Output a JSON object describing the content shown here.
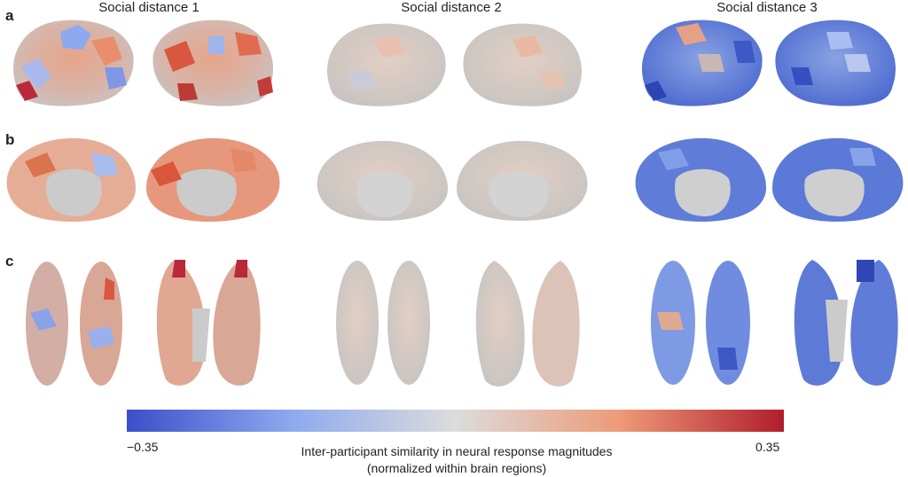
{
  "figure": {
    "columns": [
      "Social distance 1",
      "Social distance 2",
      "Social distance 3"
    ],
    "row_labels": [
      "a",
      "b",
      "c"
    ],
    "colorbar": {
      "min_label": "−0.35",
      "max_label": "0.35",
      "label_line1": "Inter-participant similarity in neural response magnitudes",
      "label_line2": "(normalized within brain regions)",
      "colors": [
        "#3a4fc8",
        "#8ea9ef",
        "#dcdcdc",
        "#ee9a78",
        "#b01d2c"
      ]
    },
    "panel_tones": {
      "social_distance_1": "mixed red/blue, predominantly red",
      "social_distance_2": "near-neutral grey with faint red",
      "social_distance_3": "predominantly blue"
    }
  }
}
